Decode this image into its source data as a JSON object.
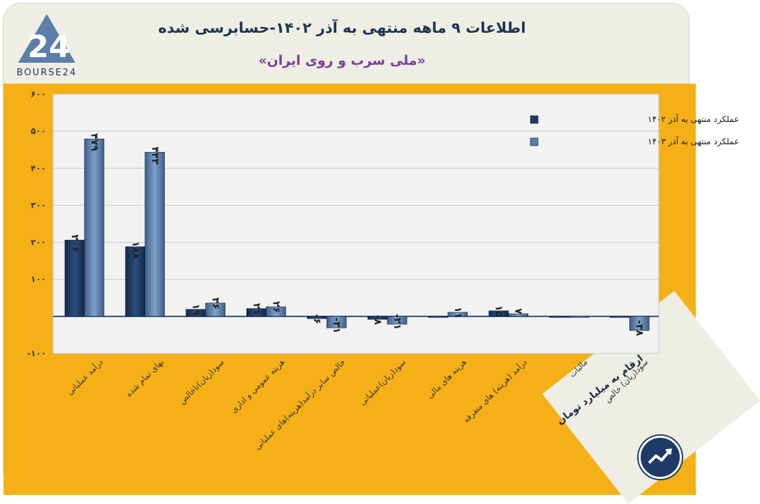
{
  "header": {
    "title": "اطلاعات ۹ ماهه منتهی به آذر ۱۴۰۲-حسابرسی شده",
    "subtitle": "«ملی سرب و روی ایران»",
    "logo_text": "BOURSE24",
    "logo_number": "24"
  },
  "footer": {
    "units_note": "ارقام به میلیارد تومان"
  },
  "colors": {
    "band": "#f5b018",
    "series1": "#1d3b63",
    "series2": "#5b7faa",
    "text": "#1e3552",
    "subtitle": "#7a3f9a"
  },
  "chart_data": {
    "type": "bar",
    "title": "اطلاعات ۹ ماهه منتهی به آذر ۱۴۰۲-حسابرسی شده",
    "ylim": [
      -100,
      600
    ],
    "yticks": [
      -100,
      100,
      200,
      300,
      400,
      500,
      600
    ],
    "ytick_labels": [
      "-۱۰۰",
      "۱۰۰",
      "۲۰۰",
      "۳۰۰",
      "۴۰۰",
      "۵۰۰",
      "۶۰۰"
    ],
    "grid": true,
    "legend_position": "top-right",
    "categories": [
      "درآمد عملیاتی",
      "بهای تمام شده",
      "سود(زیان)ناخالص",
      "هزینه عمومی و اداری",
      "خالص سایر درآمد(هزینه)های عملیاتی",
      "سود(زیان)عملیاتی",
      "هزینه های مالی",
      "درآمد (هزینه) های متفرقه",
      "مالیات",
      "سود(زیان) خالص"
    ],
    "series": [
      {
        "name": "عملکرد منتهی به آذر ۱۴۰۲",
        "values": [
          206,
          188,
          19,
          21,
          -6,
          -8,
          0,
          15,
          0,
          0
        ],
        "labels": [
          "۲۰۶",
          "۱۸۸",
          "۱۹",
          "۲۱",
          "-۶",
          "-۸",
          "",
          "۱۵",
          "",
          ""
        ]
      },
      {
        "name": "عملکرد منتهی به آذر ۱۴۰۳",
        "values": [
          479,
          443,
          36,
          26,
          -31,
          -21,
          11,
          7,
          -1,
          -38
        ],
        "labels": [
          "۴۷۹",
          "۴۴۳",
          "۳۶",
          "۲۶",
          "-۳۱",
          "-۲۱",
          "۱۱",
          "۷",
          "",
          "-۳۸"
        ]
      }
    ]
  }
}
